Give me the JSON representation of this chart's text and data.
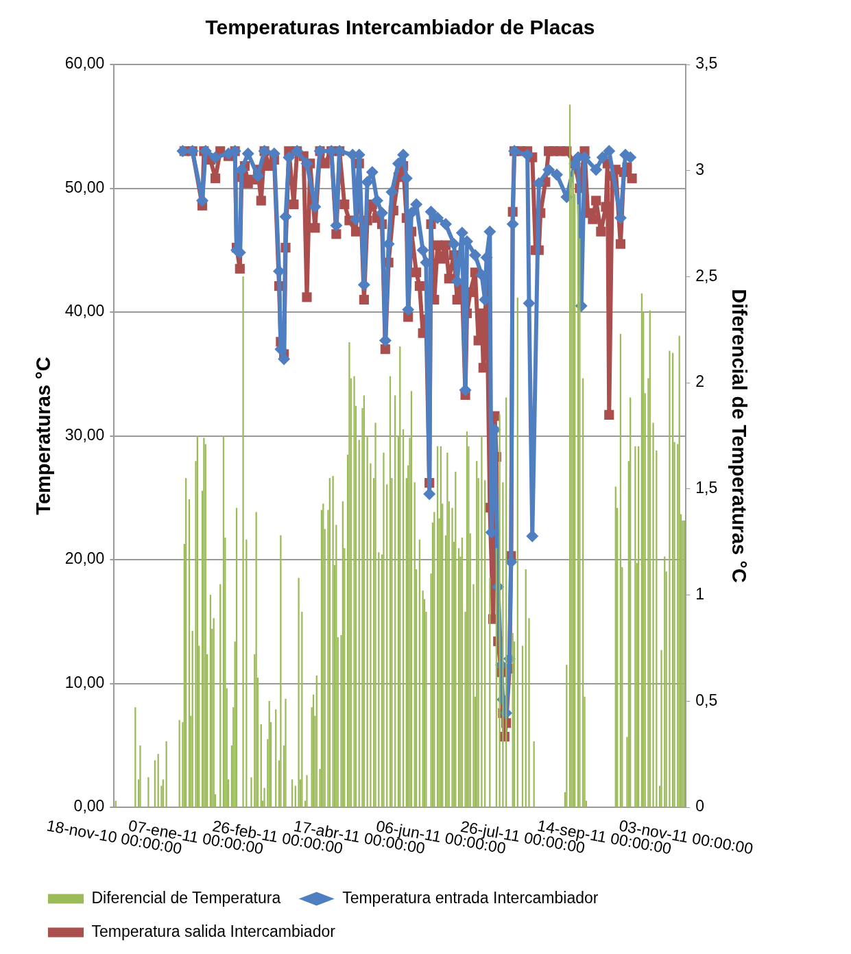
{
  "chart_data": {
    "type": "line",
    "title": "Temperaturas Intercambiador de Placas",
    "ylabel": "Temperaturas °C",
    "y2label": "Diferencial de Temperaturas °C",
    "xlim": [
      "2010-11-18",
      "2011-11-03"
    ],
    "xticks": [
      {
        "value": "2010-11-18",
        "label": "18-nov-10 00:00:00"
      },
      {
        "value": "2011-01-07",
        "label": "07-ene-11 00:00:00"
      },
      {
        "value": "2011-02-26",
        "label": "26-feb-11 00:00:00"
      },
      {
        "value": "2011-04-17",
        "label": "17-abr-11 00:00:00"
      },
      {
        "value": "2011-06-06",
        "label": "06-jun-11 00:00:00"
      },
      {
        "value": "2011-07-26",
        "label": "26-jul-11 00:00:00"
      },
      {
        "value": "2011-09-14",
        "label": "14-sep-11 00:00:00"
      },
      {
        "value": "2011-11-03",
        "label": "03-nov-11 00:00:00"
      }
    ],
    "ylim": [
      0,
      60
    ],
    "yticks": [
      {
        "value": 0,
        "label": "0,00"
      },
      {
        "value": 10,
        "label": "10,00"
      },
      {
        "value": 20,
        "label": "20,00"
      },
      {
        "value": 30,
        "label": "30,00"
      },
      {
        "value": 40,
        "label": "40,00"
      },
      {
        "value": 50,
        "label": "50,00"
      },
      {
        "value": 60,
        "label": "60,00"
      }
    ],
    "y2lim": [
      0,
      3.5
    ],
    "y2ticks": [
      0,
      {
        "value": 0.5,
        "label": "0,5"
      },
      1,
      {
        "value": 1.5,
        "label": "1,5"
      },
      2,
      {
        "value": 2.5,
        "label": "2,5"
      },
      3,
      {
        "value": 3.5,
        "label": "3,5"
      }
    ],
    "grid": "y",
    "legend": "bottom",
    "series": [
      {
        "name": "Diferencial de Temperatura",
        "type": "bar",
        "axis": "y2",
        "color": "#9bbb59",
        "x": [
          "2010-11-19",
          "2010-12-01",
          "2010-12-03",
          "2010-12-04",
          "2010-12-09",
          "2010-12-13",
          "2010-12-15",
          "2010-12-17",
          "2010-12-18",
          "2010-12-20",
          "2010-12-28",
          "2010-12-30",
          "2010-12-31",
          "2011-01-01",
          "2011-01-03",
          "2011-01-04",
          "2011-01-05",
          "2011-01-07",
          "2011-01-08",
          "2011-01-09",
          "2011-01-11",
          "2011-01-12",
          "2011-01-13",
          "2011-01-14",
          "2011-01-16",
          "2011-01-17",
          "2011-01-18",
          "2011-01-19",
          "2011-01-22",
          "2011-01-24",
          "2011-01-25",
          "2011-01-26",
          "2011-01-27",
          "2011-01-29",
          "2011-01-30",
          "2011-01-31",
          "2011-02-01",
          "2011-02-05",
          "2011-02-07",
          "2011-02-10",
          "2011-02-12",
          "2011-02-13",
          "2011-02-14",
          "2011-02-16",
          "2011-02-17",
          "2011-02-18",
          "2011-02-20",
          "2011-02-21",
          "2011-02-22",
          "2011-02-25",
          "2011-02-27",
          "2011-02-28",
          "2011-03-02",
          "2011-03-03",
          "2011-03-07",
          "2011-03-09",
          "2011-03-11",
          "2011-03-12",
          "2011-03-13",
          "2011-03-15",
          "2011-03-16",
          "2011-03-19",
          "2011-03-20",
          "2011-03-21",
          "2011-03-22",
          "2011-03-24",
          "2011-03-25",
          "2011-03-26",
          "2011-03-27",
          "2011-03-29",
          "2011-03-30",
          "2011-04-01",
          "2011-04-02",
          "2011-04-03",
          "2011-04-04",
          "2011-04-06",
          "2011-04-07",
          "2011-04-08",
          "2011-04-10",
          "2011-04-11",
          "2011-04-12",
          "2011-04-14",
          "2011-04-15",
          "2011-04-17",
          "2011-04-19",
          "2011-04-20",
          "2011-04-22",
          "2011-04-24",
          "2011-04-26",
          "2011-04-27",
          "2011-04-29",
          "2011-05-01",
          "2011-05-02",
          "2011-05-04",
          "2011-05-06",
          "2011-05-07",
          "2011-05-09",
          "2011-05-11",
          "2011-05-12",
          "2011-05-14",
          "2011-05-16",
          "2011-05-17",
          "2011-05-18",
          "2011-05-19",
          "2011-05-21",
          "2011-05-22",
          "2011-05-24",
          "2011-05-26",
          "2011-05-27",
          "2011-05-28",
          "2011-05-31",
          "2011-06-01",
          "2011-06-02",
          "2011-06-04",
          "2011-06-05",
          "2011-06-06",
          "2011-06-07",
          "2011-06-09",
          "2011-06-10",
          "2011-06-11",
          "2011-06-13",
          "2011-06-14",
          "2011-06-15",
          "2011-06-17",
          "2011-06-18",
          "2011-06-19",
          "2011-06-21",
          "2011-06-22",
          "2011-06-23",
          "2011-06-24",
          "2011-06-26",
          "2011-06-27",
          "2011-06-28",
          "2011-06-29",
          "2011-07-01",
          "2011-07-03",
          "2011-07-06",
          "2011-07-10",
          "2011-07-12",
          "2011-07-14",
          "2011-07-16",
          "2011-07-20",
          "2011-07-21",
          "2011-07-23",
          "2011-07-26",
          "2011-07-28",
          "2011-07-30",
          "2011-08-02",
          "2011-08-21",
          "2011-08-22",
          "2011-08-24",
          "2011-08-25",
          "2011-08-26",
          "2011-08-27",
          "2011-08-29",
          "2011-08-30",
          "2011-09-01",
          "2011-09-02",
          "2011-09-03",
          "2011-09-21",
          "2011-09-22",
          "2011-09-24",
          "2011-09-25",
          "2011-09-28",
          "2011-09-29",
          "2011-09-30",
          "2011-10-03",
          "2011-10-04",
          "2011-10-05",
          "2011-10-07",
          "2011-10-08",
          "2011-10-09",
          "2011-10-11",
          "2011-10-12",
          "2011-10-14",
          "2011-10-16",
          "2011-10-18",
          "2011-10-19",
          "2011-10-21",
          "2011-10-22",
          "2011-10-24",
          "2011-10-26",
          "2011-10-27",
          "2011-10-29",
          "2011-10-30",
          "2011-10-31",
          "2011-11-01",
          "2011-11-02"
        ],
        "values": [
          0.03,
          0.47,
          0.13,
          0.29,
          0.14,
          0.22,
          0.25,
          0.1,
          0.13,
          0.31,
          0.41,
          0.4,
          1.24,
          1.55,
          1.45,
          0.43,
          0.83,
          1.63,
          1.75,
          0.76,
          1.49,
          1.74,
          1.71,
          0.72,
          1.0,
          0.84,
          0.89,
          0.06,
          1.05,
          1.75,
          1.27,
          0.56,
          0.13,
          0.29,
          0.47,
          0.78,
          1.41,
          2.5,
          1.26,
          0.14,
          0.72,
          1.39,
          0.61,
          0.39,
          0.03,
          0.09,
          0.32,
          0.5,
          0.4,
          0.46,
          0.22,
          1.28,
          0.29,
          0.51,
          0.13,
          0.1,
          1.08,
          0.13,
          0.92,
          0.03,
          0.15,
          0.47,
          0.53,
          0.43,
          0.62,
          0.18,
          1.4,
          1.43,
          1.31,
          1.4,
          1.55,
          1.56,
          1.14,
          1.33,
          0.8,
          0.81,
          1.44,
          1.22,
          1.66,
          2.19,
          2.02,
          2.03,
          1.89,
          1.73,
          1.88,
          1.94,
          1.75,
          1.62,
          1.55,
          1.81,
          1.2,
          1.19,
          1.67,
          1.52,
          2.03,
          1.55,
          1.94,
          1.75,
          2.17,
          1.78,
          1.55,
          1.61,
          1.74,
          1.96,
          1.53,
          1.12,
          1.26,
          1.02,
          0.98,
          0.92,
          1.1,
          1.34,
          1.39,
          1.7,
          1.36,
          1.7,
          1.43,
          1.28,
          1.67,
          1.44,
          1.41,
          1.25,
          1.58,
          1.22,
          1.18,
          1.27,
          0.92,
          1.77,
          1.7,
          1.29,
          1.05,
          0.52,
          1.63,
          1.55,
          1.75,
          1.54,
          1.08,
          1.22,
          1.85,
          1.53,
          1.93,
          0.82,
          0.78,
          2.4,
          0.76,
          1.12,
          0.89,
          0.31,
          0.07,
          0.67,
          3.31,
          2.97,
          3.0,
          2.89,
          2.84,
          2.68,
          2.02,
          0.52,
          0.03,
          1.51,
          1.41,
          2.23,
          1.13,
          0.33,
          1.63,
          1.93,
          1.7,
          1.15,
          1.7,
          2.42,
          2.33,
          1.95,
          2.02,
          2.34,
          1.81,
          1.68,
          0.1,
          0.74,
          1.18,
          1.11,
          2.15,
          2.14,
          1.72,
          1.71,
          2.22,
          1.38,
          1.35,
          1.35
        ]
      },
      {
        "name": "Temperatura entrada Intercambiador",
        "color": "#4f7fc0",
        "marker": "diamond",
        "line_style": "solid",
        "x": [
          "2010-12-30",
          "2011-01-05",
          "2011-01-11",
          "2011-01-13",
          "2011-01-19",
          "2011-01-27",
          "2011-01-31",
          "2011-02-01",
          "2011-02-03",
          "2011-02-04",
          "2011-02-08",
          "2011-02-14",
          "2011-02-18",
          "2011-02-24",
          "2011-02-27",
          "2011-02-28",
          "2011-03-02",
          "2011-03-03",
          "2011-03-05",
          "2011-03-10",
          "2011-03-16",
          "2011-03-21",
          "2011-03-24",
          "2011-03-31",
          "2011-04-03",
          "2011-04-05",
          "2011-04-13",
          "2011-04-15",
          "2011-04-17",
          "2011-04-20",
          "2011-04-22",
          "2011-04-25",
          "2011-04-28",
          "2011-05-01",
          "2011-05-03",
          "2011-05-05",
          "2011-05-07",
          "2011-05-11",
          "2011-05-14",
          "2011-05-16",
          "2011-05-17",
          "2011-05-19",
          "2011-05-22",
          "2011-05-26",
          "2011-05-28",
          "2011-05-30",
          "2011-05-31",
          "2011-06-04",
          "2011-06-09",
          "2011-06-14",
          "2011-06-16",
          "2011-06-19",
          "2011-06-21",
          "2011-06-22",
          "2011-06-27",
          "2011-07-01",
          "2011-07-03",
          "2011-07-04",
          "2011-07-06",
          "2011-07-07",
          "2011-07-09",
          "2011-07-11",
          "2011-07-13",
          "2011-07-14",
          "2011-07-16",
          "2011-07-18",
          "2011-07-19",
          "2011-07-20",
          "2011-07-21",
          "2011-07-29",
          "2011-07-30",
          "2011-08-01",
          "2011-08-05",
          "2011-08-11",
          "2011-08-16",
          "2011-08-22",
          "2011-08-27",
          "2011-08-29",
          "2011-08-31",
          "2011-09-02",
          "2011-09-09",
          "2011-09-13",
          "2011-09-17",
          "2011-09-24",
          "2011-09-27",
          "2011-09-30"
        ],
        "values": [
          53.0,
          53.0,
          49.0,
          53.0,
          52.5,
          52.8,
          53.0,
          45.0,
          44.8,
          51.5,
          52.8,
          51.0,
          53.0,
          52.8,
          43.3,
          37.0,
          36.2,
          47.7,
          52.5,
          53.0,
          52.0,
          48.5,
          53.0,
          53.0,
          47.0,
          53.0,
          52.7,
          47.5,
          52.7,
          42.2,
          50.5,
          51.3,
          49.0,
          48.0,
          37.7,
          45.5,
          49.7,
          52.0,
          52.7,
          50.8,
          40.2,
          48.0,
          48.7,
          45.0,
          44.0,
          25.3,
          48.1,
          47.6,
          47.1,
          45.5,
          42.5,
          46.4,
          33.7,
          45.7,
          44.6,
          43.0,
          41.0,
          44.4,
          46.5,
          22.2,
          30.5,
          17.8,
          11.5,
          8.7,
          7.6,
          12.0,
          19.8,
          47.1,
          53.0,
          52.7,
          40.7,
          21.9,
          50.4,
          51.5,
          51.1,
          49.3,
          52.0,
          52.5,
          40.5,
          52.5,
          51.5,
          52.5,
          53.0,
          47.6,
          52.7,
          52.5
        ]
      },
      {
        "name": "Temperatura salida Intercambiador",
        "color": "#aa4f4d",
        "marker": "square",
        "line_style": "solid",
        "x": [
          "2010-12-31",
          "2011-01-05",
          "2011-01-11",
          "2011-01-12",
          "2011-01-16",
          "2011-01-19",
          "2011-01-22",
          "2011-01-27",
          "2011-01-31",
          "2011-02-01",
          "2011-02-03",
          "2011-02-04",
          "2011-02-06",
          "2011-02-08",
          "2011-02-11",
          "2011-02-14",
          "2011-02-16",
          "2011-02-18",
          "2011-02-21",
          "2011-02-24",
          "2011-02-27",
          "2011-02-28",
          "2011-03-02",
          "2011-03-03",
          "2011-03-05",
          "2011-03-08",
          "2011-03-10",
          "2011-03-14",
          "2011-03-16",
          "2011-03-18",
          "2011-03-21",
          "2011-03-24",
          "2011-03-27",
          "2011-03-31",
          "2011-04-03",
          "2011-04-05",
          "2011-04-08",
          "2011-04-11",
          "2011-04-15",
          "2011-04-17",
          "2011-04-20",
          "2011-04-22",
          "2011-04-25",
          "2011-04-28",
          "2011-05-01",
          "2011-05-03",
          "2011-05-05",
          "2011-05-08",
          "2011-05-11",
          "2011-05-14",
          "2011-05-16",
          "2011-05-17",
          "2011-05-19",
          "2011-05-22",
          "2011-05-24",
          "2011-05-26",
          "2011-05-28",
          "2011-05-30",
          "2011-05-31",
          "2011-06-02",
          "2011-06-04",
          "2011-06-06",
          "2011-06-09",
          "2011-06-11",
          "2011-06-14",
          "2011-06-16",
          "2011-06-19",
          "2011-06-21",
          "2011-06-22",
          "2011-06-24",
          "2011-06-27",
          "2011-06-29",
          "2011-07-01",
          "2011-07-02",
          "2011-07-04",
          "2011-07-06",
          "2011-07-08",
          "2011-07-09",
          "2011-07-10",
          "2011-07-11",
          "2011-07-13",
          "2011-07-14",
          "2011-07-15",
          "2011-07-16",
          "2011-07-18",
          "2011-07-19",
          "2011-07-20",
          "2011-07-21",
          "2011-07-25",
          "2011-07-29",
          "2011-08-01",
          "2011-08-03",
          "2011-08-05",
          "2011-08-06",
          "2011-08-09",
          "2011-08-11",
          "2011-08-14",
          "2011-08-18",
          "2011-08-22",
          "2011-08-27",
          "2011-08-30",
          "2011-09-02",
          "2011-09-04",
          "2011-09-07",
          "2011-09-09",
          "2011-09-12",
          "2011-09-15",
          "2011-09-16",
          "2011-09-17",
          "2011-09-19",
          "2011-09-21",
          "2011-09-24",
          "2011-09-26",
          "2011-09-28",
          "2011-10-01"
        ],
        "values": [
          53.0,
          53.0,
          48.6,
          53.0,
          52.3,
          50.8,
          53.0,
          52.6,
          53.0,
          45.2,
          43.5,
          50.9,
          51.8,
          50.4,
          50.7,
          51.5,
          49.0,
          53.0,
          51.8,
          52.3,
          42.1,
          37.6,
          36.6,
          45.2,
          53.0,
          48.7,
          53.0,
          52.6,
          41.2,
          52.0,
          46.8,
          53.0,
          52.0,
          53.0,
          46.3,
          53.0,
          48.7,
          47.4,
          46.5,
          52.0,
          41.0,
          47.4,
          48.7,
          47.6,
          47.1,
          37.0,
          44.0,
          48.2,
          50.9,
          51.8,
          47.6,
          39.6,
          46.5,
          43.2,
          42.1,
          38.3,
          39.4,
          26.2,
          47.1,
          41.0,
          45.4,
          44.3,
          45.4,
          42.7,
          44.6,
          41.0,
          42.1,
          33.3,
          39.9,
          41.6,
          43.2,
          37.7,
          39.9,
          35.5,
          42.7,
          24.2,
          15.2,
          31.6,
          28.3,
          13.4,
          10.9,
          7.6,
          5.7,
          6.8,
          11.2,
          20.3,
          48.1,
          53.0,
          53.0,
          53.0,
          52.5,
          45.0,
          45.0,
          48.0,
          50.5,
          53.0,
          53.0,
          53.0,
          53.0,
          52.0,
          50.0,
          53.0,
          48.0,
          47.5,
          49.0,
          46.5,
          48.5,
          52.0,
          31.7,
          51.0,
          51.5,
          45.5,
          51.3,
          51.7,
          50.8
        ]
      }
    ]
  }
}
